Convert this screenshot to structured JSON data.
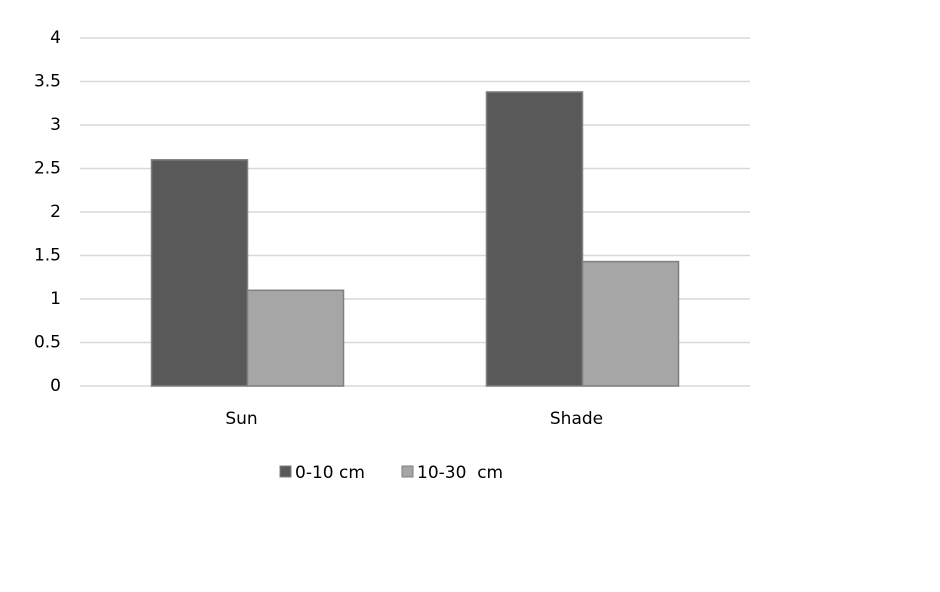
{
  "chart_data": {
    "type": "bar",
    "categories": [
      "Sun",
      "Shade"
    ],
    "series": [
      {
        "name": "0-10 cm",
        "color": "#595959",
        "values": [
          2.6,
          3.38
        ]
      },
      {
        "name": "10-30  cm",
        "color": "#a6a6a6",
        "values": [
          1.1,
          1.43
        ]
      }
    ],
    "ylim": [
      0,
      4
    ],
    "yticks": [
      0,
      0.5,
      1,
      1.5,
      2,
      2.5,
      3,
      3.5,
      4
    ],
    "grid": true,
    "legend": "bottom"
  }
}
